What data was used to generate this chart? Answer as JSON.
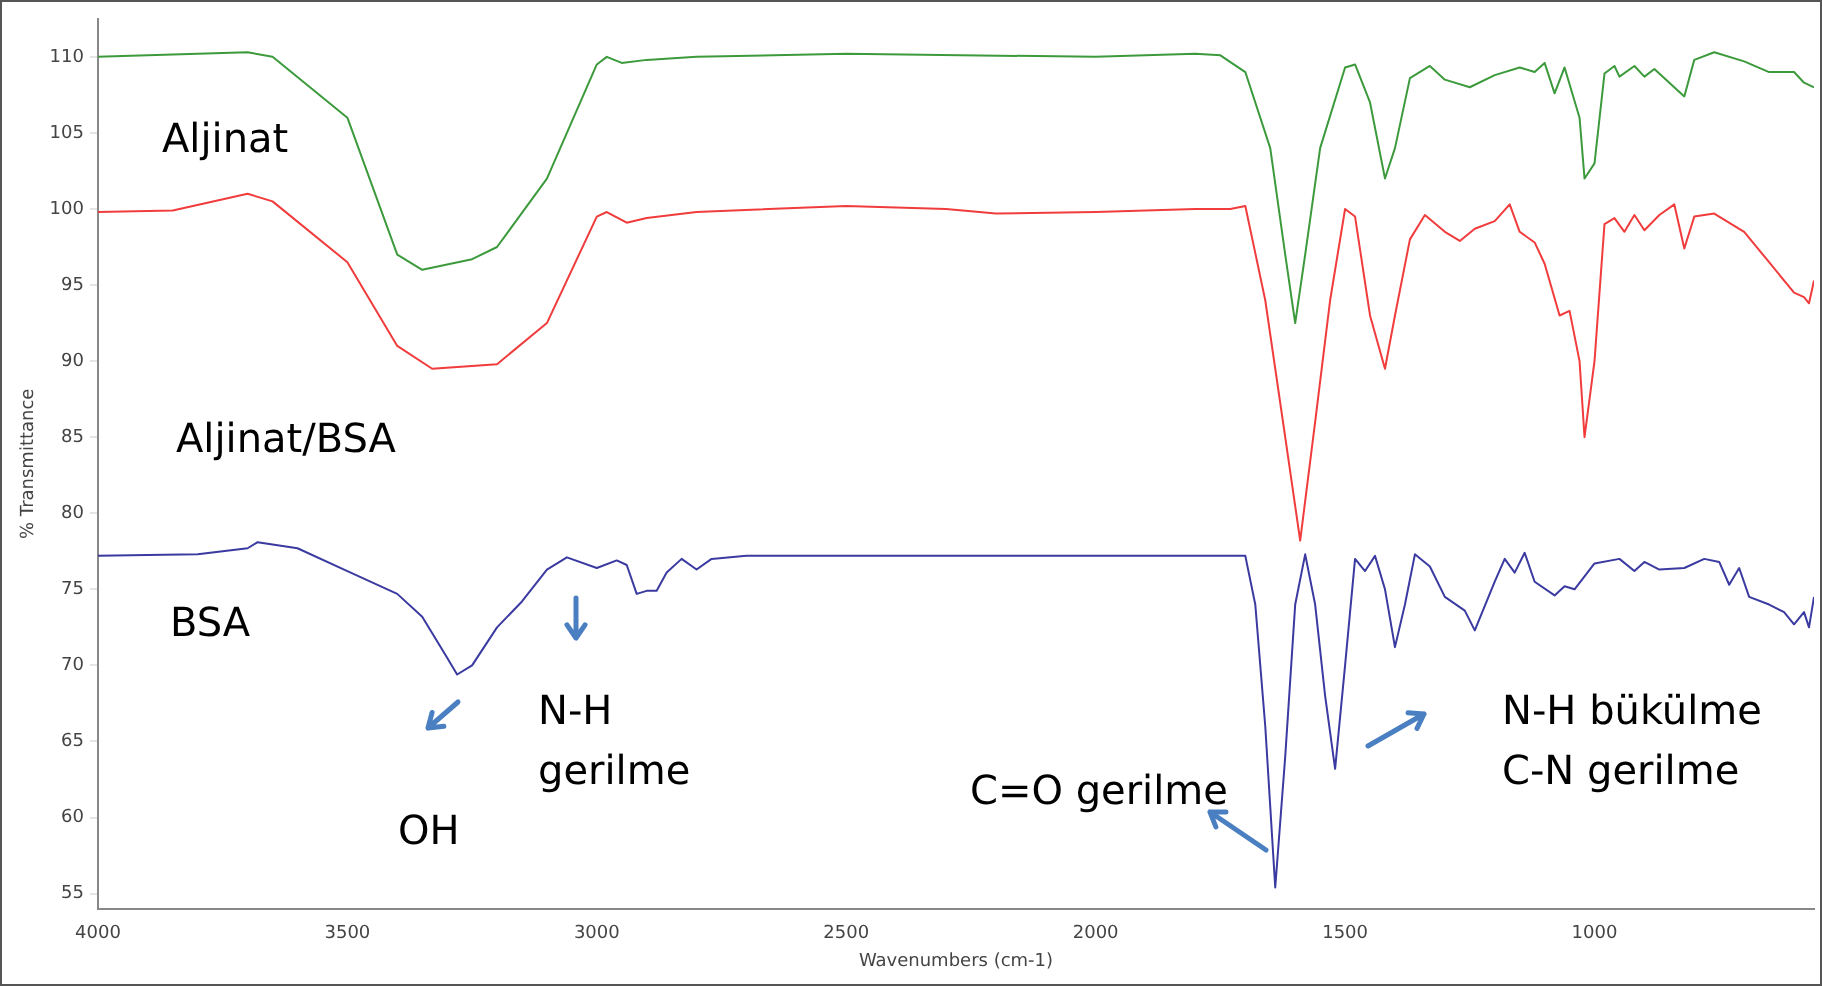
{
  "chart_data": {
    "type": "line",
    "xlabel": "Wavenumbers (cm-1)",
    "ylabel": "% Transmittance",
    "xlim": [
      4000,
      560
    ],
    "ylim": [
      54,
      112.5
    ],
    "xticks": [
      4000,
      3500,
      3000,
      2500,
      2000,
      1500,
      1000
    ],
    "yticks": [
      55,
      60,
      65,
      70,
      75,
      80,
      85,
      90,
      95,
      100,
      105,
      110
    ],
    "legend": false,
    "grid": false,
    "annotations": [
      "OH",
      "N-H\ngerilme",
      "C=O gerilme",
      "N-H bükülme\nC-N gerilme"
    ],
    "series": [
      {
        "name": "Aljinat",
        "color": "#3c9a3c",
        "x": [
          4000,
          3700,
          3650,
          3500,
          3400,
          3350,
          3250,
          3200,
          3100,
          3000,
          2980,
          2950,
          2900,
          2800,
          2500,
          2000,
          1800,
          1750,
          1700,
          1650,
          1620,
          1600,
          1580,
          1550,
          1500,
          1480,
          1450,
          1420,
          1400,
          1370,
          1330,
          1300,
          1250,
          1200,
          1150,
          1120,
          1100,
          1080,
          1060,
          1030,
          1020,
          1000,
          980,
          960,
          950,
          920,
          900,
          880,
          820,
          800,
          760,
          700,
          650,
          600,
          580,
          560
        ],
        "values": [
          110,
          110.3,
          110,
          106,
          97,
          96,
          96.7,
          97.5,
          102,
          109.5,
          110,
          109.6,
          109.8,
          110,
          110.2,
          110,
          110.2,
          110.1,
          109,
          104,
          97,
          92.5,
          97,
          104,
          109.3,
          109.5,
          107,
          102,
          104,
          108.6,
          109.4,
          108.5,
          108,
          108.8,
          109.3,
          109,
          109.6,
          107.6,
          109.3,
          106,
          102,
          103,
          108.9,
          109.4,
          108.7,
          109.4,
          108.7,
          109.2,
          107.4,
          109.8,
          110.3,
          109.7,
          109,
          109,
          108.3,
          108
        ]
      },
      {
        "name": "Aljinat/BSA",
        "color": "#f03c3c",
        "x": [
          4000,
          3850,
          3700,
          3650,
          3500,
          3400,
          3330,
          3200,
          3100,
          3000,
          2980,
          2940,
          2900,
          2800,
          2500,
          2300,
          2200,
          2000,
          1800,
          1730,
          1700,
          1660,
          1620,
          1590,
          1560,
          1530,
          1500,
          1480,
          1450,
          1420,
          1400,
          1370,
          1340,
          1300,
          1270,
          1240,
          1200,
          1170,
          1150,
          1120,
          1100,
          1070,
          1050,
          1030,
          1020,
          1000,
          980,
          960,
          940,
          920,
          900,
          870,
          840,
          820,
          800,
          760,
          700,
          650,
          600,
          580,
          570,
          560
        ],
        "values": [
          99.8,
          99.9,
          101,
          100.5,
          96.5,
          91,
          89.5,
          89.8,
          92.5,
          99.5,
          99.8,
          99.1,
          99.4,
          99.8,
          100.2,
          100,
          99.7,
          99.8,
          100,
          100,
          100.2,
          94,
          85,
          78.2,
          86,
          94,
          100,
          99.5,
          93,
          89.5,
          93,
          98,
          99.6,
          98.5,
          97.9,
          98.7,
          99.2,
          100.3,
          98.5,
          97.8,
          96.4,
          93,
          93.3,
          90,
          85,
          90,
          99,
          99.4,
          98.5,
          99.6,
          98.6,
          99.6,
          100.3,
          97.4,
          99.5,
          99.7,
          98.5,
          96.5,
          94.5,
          94.2,
          93.8,
          95.3
        ]
      },
      {
        "name": "BSA",
        "color": "#3a3aa0",
        "x": [
          4000,
          3800,
          3700,
          3680,
          3600,
          3500,
          3400,
          3350,
          3300,
          3280,
          3250,
          3200,
          3150,
          3100,
          3060,
          3000,
          2960,
          2940,
          2920,
          2900,
          2880,
          2860,
          2830,
          2800,
          2770,
          2700,
          2500,
          2000,
          1700,
          1680,
          1660,
          1640,
          1620,
          1600,
          1580,
          1560,
          1540,
          1520,
          1500,
          1480,
          1460,
          1440,
          1420,
          1400,
          1380,
          1360,
          1330,
          1300,
          1260,
          1240,
          1200,
          1180,
          1160,
          1140,
          1120,
          1080,
          1060,
          1040,
          1000,
          950,
          920,
          900,
          870,
          820,
          780,
          750,
          730,
          710,
          690,
          650,
          620,
          600,
          580,
          570,
          560
        ],
        "values": [
          77.2,
          77.3,
          77.7,
          78.1,
          77.7,
          76.2,
          74.7,
          73.2,
          70.5,
          69.4,
          70,
          72.5,
          74.2,
          76.3,
          77.1,
          76.4,
          76.9,
          76.6,
          74.7,
          74.9,
          74.9,
          76.1,
          77,
          76.3,
          77,
          77.2,
          77.2,
          77.2,
          77.2,
          74,
          66,
          55.4,
          64,
          74,
          77.3,
          74,
          68,
          63.2,
          70,
          77,
          76.2,
          77.2,
          75,
          71.2,
          74,
          77.3,
          76.5,
          74.5,
          73.6,
          72.3,
          75.5,
          77,
          76.1,
          77.4,
          75.5,
          74.6,
          75.2,
          75,
          76.7,
          77,
          76.2,
          76.8,
          76.3,
          76.4,
          77,
          76.8,
          75.3,
          76.4,
          74.5,
          74,
          73.5,
          72.7,
          73.5,
          72.5,
          74.5
        ]
      }
    ]
  }
}
